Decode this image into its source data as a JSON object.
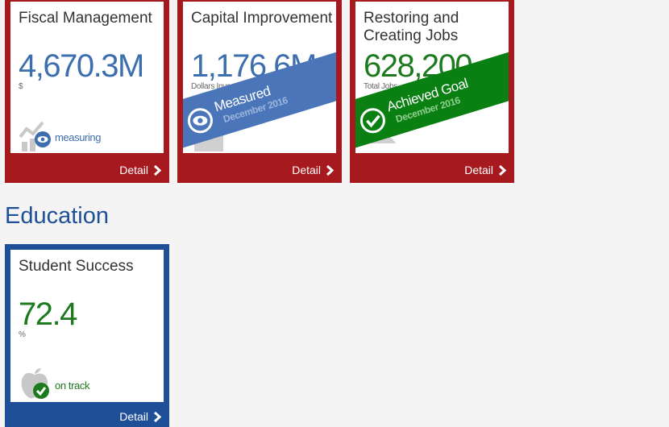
{
  "cards": [
    {
      "title": "Fiscal Management",
      "value": "4,670.3M",
      "unit": "$",
      "status": "measuring",
      "detail": "Detail"
    },
    {
      "title": "Capital Improvement",
      "value": "1,176.6M",
      "unit": "Dollars Invested",
      "banner_title": "Measured",
      "banner_date": "December 2016",
      "detail": "Detail"
    },
    {
      "title": "Restoring and Creating Jobs",
      "value": "628,200",
      "unit": "Total Jobs",
      "banner_title": "Achieved Goal",
      "banner_date": "December 2016",
      "detail": "Detail"
    }
  ],
  "education": {
    "section_title": "Education",
    "card": {
      "title": "Student Success",
      "value": "72.4",
      "unit": "%",
      "status": "on track",
      "detail": "Detail"
    }
  },
  "colors": {
    "red_frame": "#a6191e",
    "blue_frame": "#1f4f97",
    "value_blue": "#3d6eae",
    "value_green": "#1e7a1e",
    "banner_blue": "#4a76b9",
    "banner_green": "#0a7f12"
  },
  "icons": {
    "fiscal": "chart-eye-icon",
    "capital": "building-icon",
    "jobs": "people-icon",
    "education": "apple-icon"
  }
}
